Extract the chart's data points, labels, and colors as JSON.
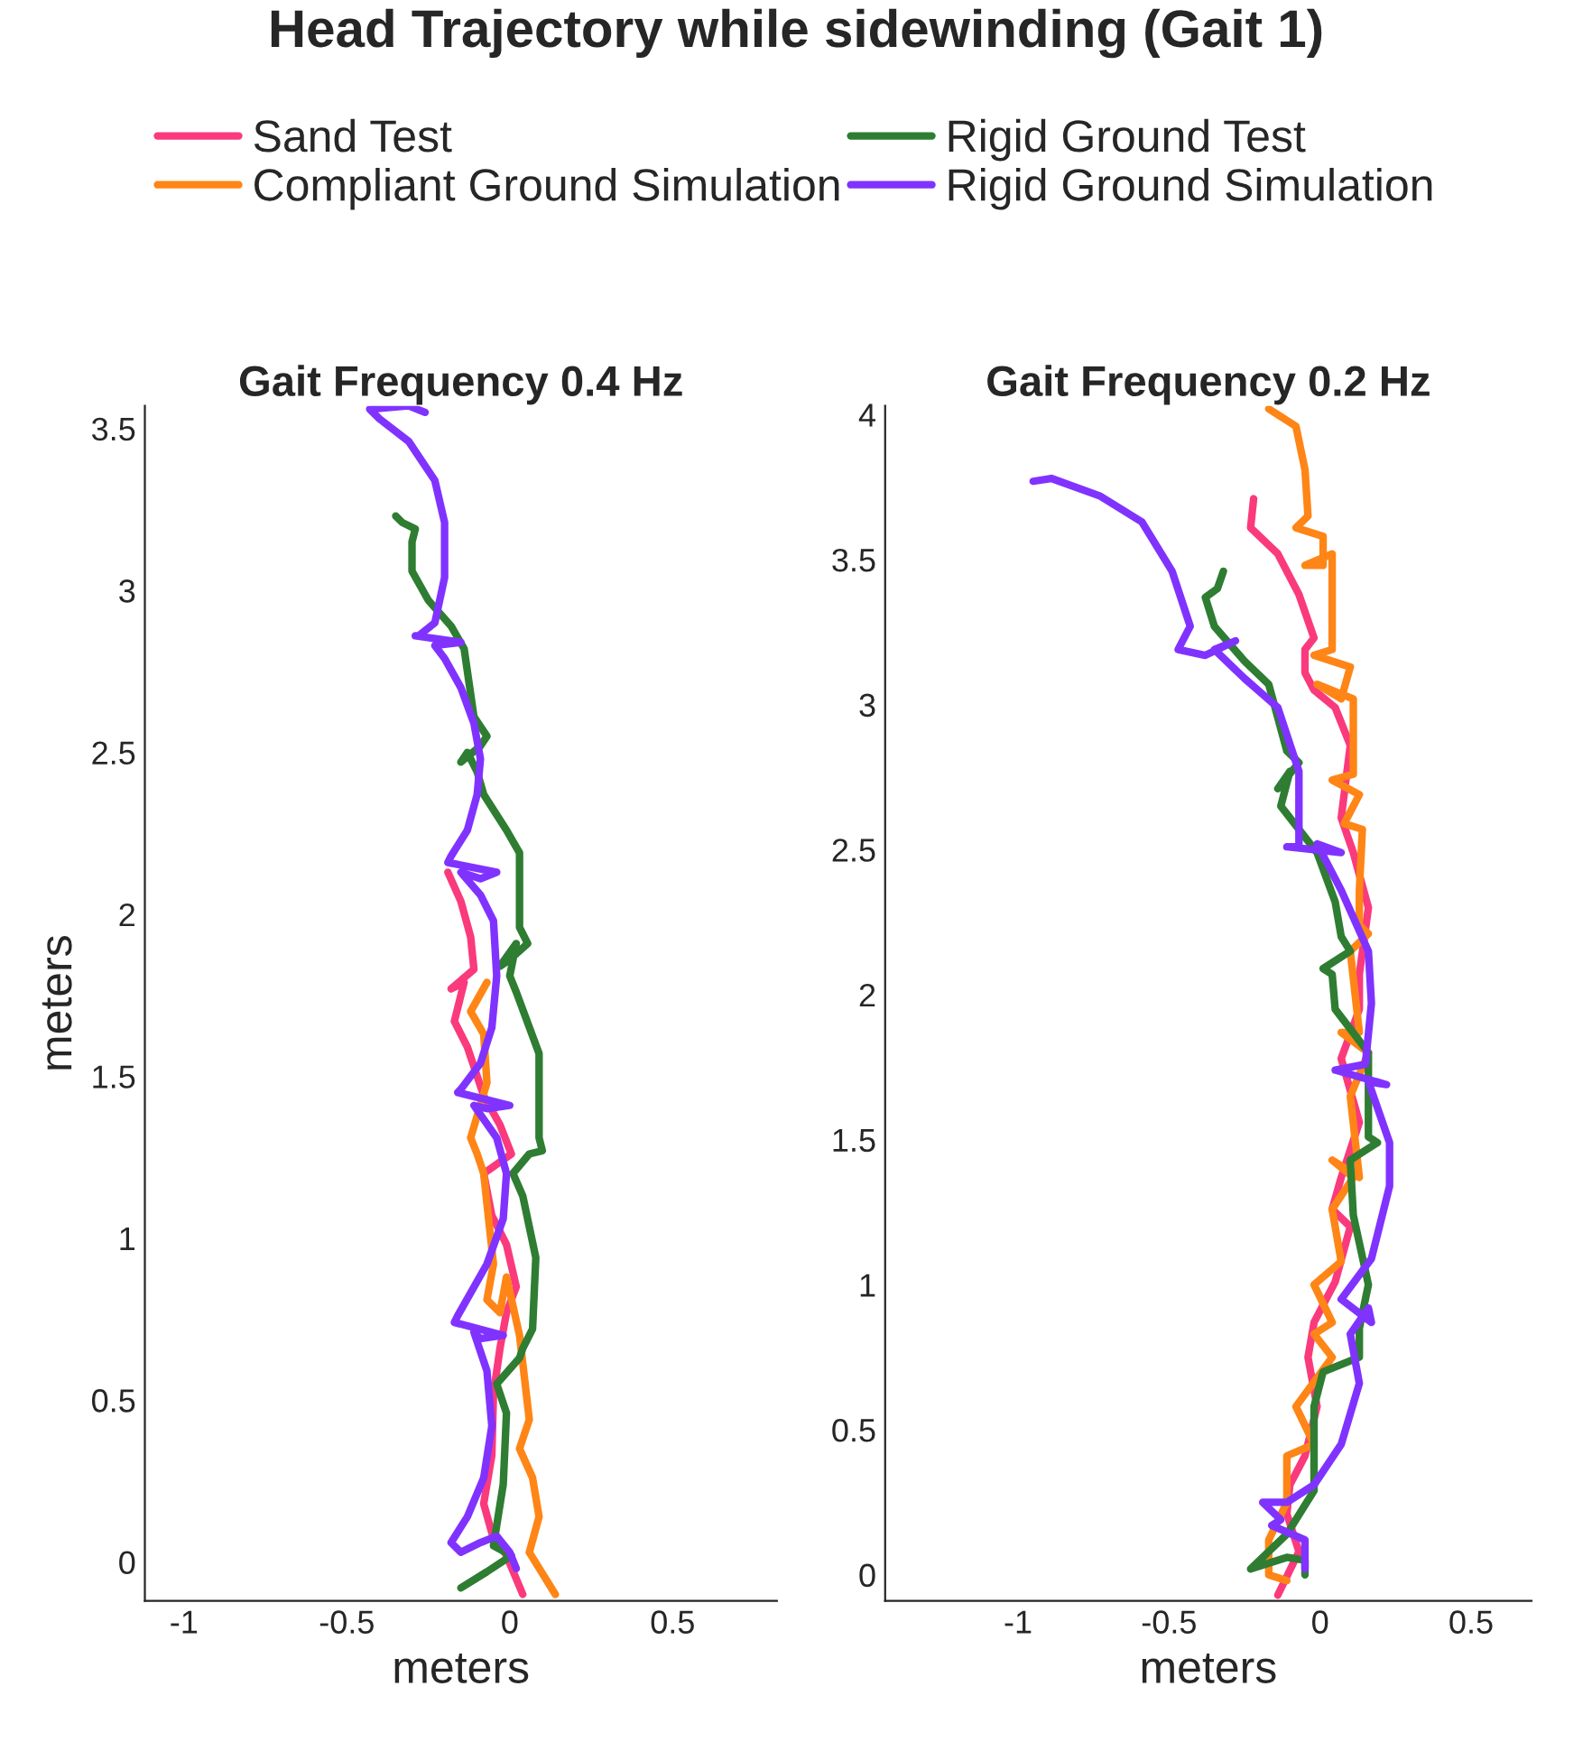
{
  "chart_data": [
    {
      "type": "line",
      "title": "Head Trajectory while sidewinding (Gait 1)",
      "subtitle": "Gait Frequency 0.4 Hz",
      "xlabel": "meters",
      "ylabel": "meters",
      "xlim": [
        -1.12,
        0.82
      ],
      "ylim": [
        -0.12,
        3.57
      ],
      "xticks": [
        -1,
        -0.5,
        0,
        0.5
      ],
      "yticks": [
        0,
        0.5,
        1,
        1.5,
        2,
        2.5,
        3,
        3.5
      ],
      "grid": false,
      "legend": "top",
      "line_style": "solid",
      "series": [
        {
          "name": "Sand Test",
          "color": "#fa3a7c",
          "x": [
            -0.19,
            -0.15,
            -0.12,
            -0.11,
            -0.18,
            -0.14,
            -0.17,
            -0.13,
            -0.08,
            -0.03,
            0.005,
            -0.08,
            -0.055,
            -0.01,
            0.02,
            -0.01,
            -0.03,
            -0.05,
            -0.055,
            -0.08,
            -0.055,
            -0.01,
            0.04
          ],
          "values": [
            2.13,
            2.04,
            1.93,
            1.83,
            1.77,
            1.79,
            1.67,
            1.59,
            1.44,
            1.35,
            1.26,
            1.2,
            1.07,
            0.98,
            0.85,
            0.77,
            0.66,
            0.52,
            0.33,
            0.18,
            0.09,
            0.02,
            -0.1
          ]
        },
        {
          "name": "Compliant Ground Simulation",
          "color": "#ff8516",
          "x": [
            -0.07,
            -0.12,
            -0.08,
            -0.07,
            -0.12,
            -0.1,
            -0.08,
            -0.05,
            -0.07,
            -0.03,
            -0.01,
            0.03,
            0.06,
            0.03,
            0.07,
            0.09,
            0.06,
            0.14
          ],
          "values": [
            1.79,
            1.7,
            1.63,
            1.48,
            1.31,
            1.26,
            1.2,
            0.92,
            0.81,
            0.77,
            0.88,
            0.7,
            0.44,
            0.35,
            0.26,
            0.14,
            0.03,
            -0.1
          ]
        },
        {
          "name": "Rigid Ground Test",
          "color": "#2e7d32",
          "x": [
            -0.35,
            -0.33,
            -0.29,
            -0.3,
            -0.3,
            -0.25,
            -0.18,
            -0.14,
            -0.11,
            -0.07,
            -0.09,
            -0.15,
            -0.13,
            -0.1,
            -0.08,
            -0.01,
            0.03,
            0.03,
            0.055,
            0.0,
            -0.03,
            0.02,
            0.0,
            0.02,
            0.09,
            0.09,
            0.1,
            0.06,
            0.01,
            0.04,
            0.08,
            0.07,
            0.04,
            0.03,
            -0.04,
            -0.01,
            -0.02,
            -0.05,
            0.005,
            -0.07,
            -0.15
          ],
          "values": [
            3.23,
            3.21,
            3.19,
            3.15,
            3.06,
            2.97,
            2.89,
            2.82,
            2.61,
            2.55,
            2.52,
            2.47,
            2.5,
            2.44,
            2.37,
            2.26,
            2.19,
            1.96,
            1.91,
            1.86,
            1.84,
            1.91,
            1.81,
            1.76,
            1.57,
            1.31,
            1.27,
            1.26,
            1.2,
            1.13,
            0.94,
            0.72,
            0.66,
            0.63,
            0.55,
            0.46,
            0.24,
            0.05,
            0.02,
            -0.03,
            -0.08
          ]
        },
        {
          "name": "Rigid Ground Simulation",
          "color": "#8033ff",
          "x": [
            -0.26,
            -0.31,
            -0.43,
            -0.4,
            -0.31,
            -0.23,
            -0.2,
            -0.2,
            -0.23,
            -0.28,
            -0.29,
            -0.15,
            -0.23,
            -0.2,
            -0.15,
            -0.11,
            -0.09,
            -0.1,
            -0.13,
            -0.18,
            -0.19,
            -0.04,
            -0.09,
            -0.15,
            -0.09,
            -0.05,
            -0.04,
            -0.055,
            -0.09,
            -0.15,
            -0.16,
            0.0,
            -0.07,
            -0.11,
            -0.04,
            -0.01,
            -0.02,
            -0.07,
            -0.16,
            -0.17,
            -0.02,
            -0.09,
            -0.11,
            -0.07,
            -0.055,
            -0.08,
            -0.13,
            -0.18,
            -0.15,
            -0.09,
            -0.04,
            0.0,
            0.02
          ],
          "values": [
            3.55,
            3.57,
            3.56,
            3.53,
            3.46,
            3.34,
            3.21,
            3.04,
            2.9,
            2.86,
            2.86,
            2.84,
            2.83,
            2.79,
            2.7,
            2.59,
            2.48,
            2.37,
            2.26,
            2.18,
            2.16,
            2.13,
            2.11,
            2.13,
            2.06,
            1.98,
            1.81,
            1.65,
            1.54,
            1.46,
            1.45,
            1.41,
            1.4,
            1.41,
            1.31,
            1.2,
            1.06,
            0.92,
            0.76,
            0.74,
            0.7,
            0.69,
            0.71,
            0.59,
            0.42,
            0.26,
            0.14,
            0.06,
            0.03,
            0.06,
            0.08,
            0.03,
            -0.02
          ]
        }
      ]
    },
    {
      "type": "line",
      "subtitle": "Gait Frequency 0.2 Hz",
      "xlabel": "meters",
      "xlim": [
        -1.44,
        0.7
      ],
      "ylim": [
        -0.09,
        4.03
      ],
      "xticks": [
        -1,
        -0.5,
        0,
        0.5
      ],
      "yticks": [
        0,
        0.5,
        1,
        1.5,
        2,
        2.5,
        3,
        3.5,
        4
      ],
      "grid": false,
      "line_style": "solid",
      "series": [
        {
          "color": "#fa3a7c",
          "x": [
            -0.22,
            -0.23,
            -0.14,
            -0.07,
            -0.02,
            -0.05,
            -0.05,
            -0.02,
            0.05,
            0.1,
            0.07,
            0.11,
            0.16,
            0.13,
            0.13,
            0.07,
            0.13,
            0.07,
            0.04,
            0.1,
            0.05,
            -0.02,
            -0.04,
            -0.01,
            -0.05,
            -0.1,
            -0.11,
            -0.07,
            -0.14
          ],
          "values": [
            3.71,
            3.61,
            3.52,
            3.38,
            3.23,
            3.19,
            3.11,
            3.05,
            2.99,
            2.86,
            2.61,
            2.49,
            2.3,
            2.07,
            1.95,
            1.78,
            1.56,
            1.37,
            1.26,
            1.2,
            1.01,
            0.87,
            0.75,
            0.58,
            0.41,
            0.31,
            0.21,
            0.08,
            -0.07
          ]
        },
        {
          "color": "#ff8516",
          "x": [
            -0.17,
            -0.08,
            -0.05,
            -0.04,
            -0.08,
            0.01,
            0.01,
            -0.05,
            0.04,
            0.04,
            -0.02,
            0.1,
            0.07,
            -0.01,
            0.11,
            0.11,
            0.04,
            0.13,
            0.08,
            0.14,
            0.13,
            0.13,
            0.16,
            0.1,
            0.13,
            0.07,
            0.16,
            0.1,
            0.13,
            0.04,
            0.11,
            0.04,
            0.07,
            -0.02,
            0.04,
            -0.02,
            0.04,
            -0.08,
            -0.02,
            -0.11,
            -0.11,
            -0.17,
            -0.17,
            -0.11
          ],
          "values": [
            4.02,
            3.96,
            3.81,
            3.65,
            3.61,
            3.58,
            3.48,
            3.48,
            3.52,
            3.19,
            3.17,
            3.13,
            3.02,
            3.07,
            3.02,
            2.76,
            2.74,
            2.69,
            2.59,
            2.57,
            2.36,
            2.24,
            2.21,
            2.15,
            1.87,
            1.87,
            1.8,
            1.65,
            1.37,
            1.43,
            1.37,
            1.26,
            1.08,
            1.0,
            0.87,
            0.83,
            0.75,
            0.58,
            0.45,
            0.41,
            0.25,
            0.12,
            0.0,
            -0.02
          ]
        },
        {
          "color": "#2e7d32",
          "x": [
            -0.32,
            -0.34,
            -0.38,
            -0.35,
            -0.25,
            -0.17,
            -0.11,
            -0.07,
            -0.14,
            -0.1,
            -0.13,
            -0.01,
            0.05,
            0.07,
            0.1,
            0.01,
            0.04,
            0.05,
            0.16,
            0.16,
            0.19,
            0.1,
            0.11,
            0.16,
            0.13,
            0.13,
            0.01,
            -0.02,
            -0.02,
            -0.11,
            -0.23,
            -0.11,
            -0.05,
            -0.05
          ],
          "values": [
            3.46,
            3.4,
            3.37,
            3.27,
            3.15,
            3.07,
            2.84,
            2.8,
            2.71,
            2.77,
            2.65,
            2.49,
            2.32,
            2.2,
            2.15,
            2.09,
            2.07,
            1.95,
            1.8,
            1.51,
            1.49,
            1.43,
            1.24,
            1.0,
            0.85,
            0.75,
            0.7,
            0.58,
            0.29,
            0.14,
            0.02,
            0.06,
            0.05,
            0.0
          ]
        },
        {
          "color": "#8033ff",
          "x": [
            -0.95,
            -0.89,
            -0.73,
            -0.59,
            -0.49,
            -0.43,
            -0.47,
            -0.38,
            -0.28,
            -0.35,
            -0.25,
            -0.14,
            -0.07,
            -0.07,
            -0.11,
            0.07,
            -0.01,
            0.07,
            0.16,
            0.17,
            0.15,
            0.05,
            0.22,
            0.16,
            0.23,
            0.23,
            0.17,
            0.07,
            0.17,
            0.16,
            0.1,
            0.13,
            0.07,
            -0.02,
            -0.11,
            -0.19,
            -0.13,
            -0.16,
            -0.05,
            -0.05
          ],
          "values": [
            3.77,
            3.78,
            3.72,
            3.63,
            3.46,
            3.27,
            3.19,
            3.17,
            3.22,
            3.19,
            3.09,
            2.99,
            2.77,
            2.51,
            2.51,
            2.49,
            2.52,
            2.36,
            2.15,
            1.97,
            1.76,
            1.74,
            1.69,
            1.7,
            1.49,
            1.34,
            1.09,
            0.95,
            0.87,
            0.92,
            0.83,
            0.66,
            0.45,
            0.31,
            0.25,
            0.25,
            0.19,
            0.17,
            0.12,
            0.02
          ]
        }
      ]
    }
  ]
}
